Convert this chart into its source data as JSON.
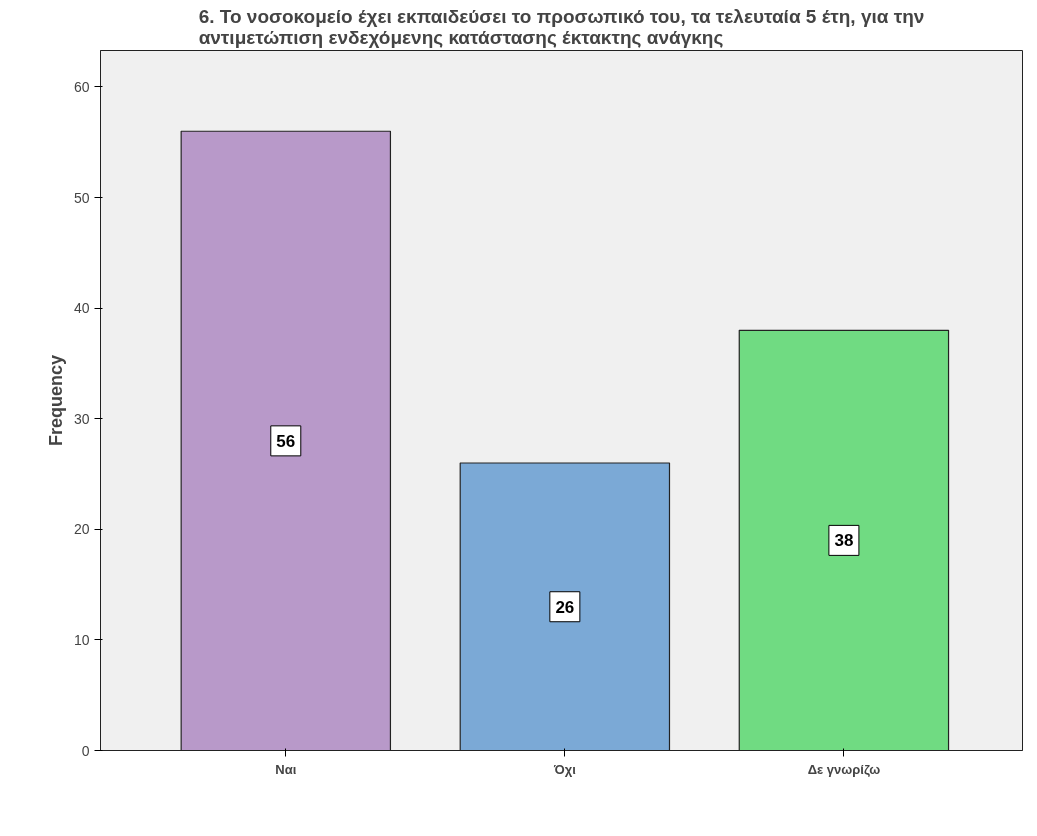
{
  "chart_data": {
    "type": "bar",
    "title": "6. Το νοσοκομείο έχει εκπαιδεύσει το προσωπικό του, τα τελευταία 5 έτη, για την\nαντιμετώπιση ενδεχόμενης κατάστασης έκτακτης ανάγκης",
    "ylabel": "Frequency",
    "categories": [
      "Ναι",
      "Όχι",
      "Δε γνωρίζω"
    ],
    "values": [
      56,
      26,
      38
    ],
    "colors": [
      "#b899c9",
      "#7ba9d6",
      "#70db82"
    ],
    "ylim": [
      0,
      63.3
    ],
    "yticks": [
      0,
      10,
      20,
      30,
      40,
      50,
      60
    ],
    "grid": false,
    "data_labels": true
  }
}
